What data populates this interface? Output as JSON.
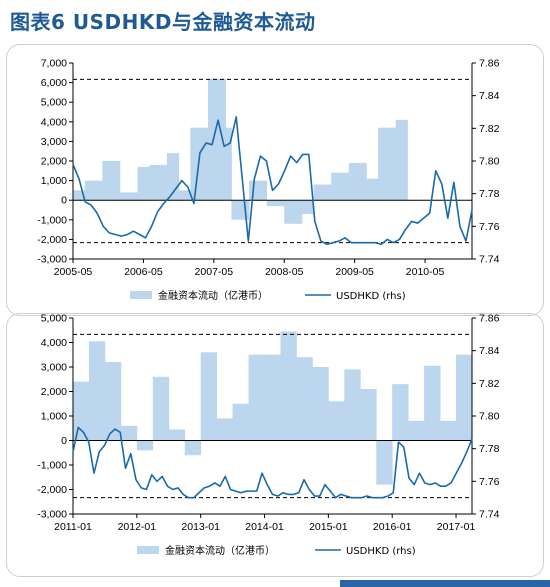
{
  "title": "图表6  USDHKD与金融资本流动",
  "chart_data": [
    {
      "type": "bar+line",
      "x_ticks": [
        "2005-05",
        "2006-05",
        "2007-05",
        "2008-05",
        "2009-05",
        "2010-05"
      ],
      "x_range": [
        "2005-05",
        "2011-01"
      ],
      "left_axis": {
        "ylim": [
          -3000,
          7000
        ],
        "ticks": [
          "-3,000",
          "-2,000",
          "-1,000",
          "0",
          "1,000",
          "2,000",
          "3,000",
          "4,000",
          "5,000",
          "6,000",
          "7,000"
        ]
      },
      "right_axis": {
        "ylim": [
          7.74,
          7.86
        ],
        "ticks": [
          "7.74",
          "7.76",
          "7.78",
          "7.80",
          "7.82",
          "7.84",
          "7.86"
        ]
      },
      "reference_lines_rhs": [
        7.85,
        7.75
      ],
      "legend": [
        "金融资本流动（亿港币）",
        "USDHKD (rhs)"
      ],
      "legend_placement": "bottom",
      "series": [
        {
          "name": "金融资本流动（亿港币）",
          "kind": "bar",
          "axis": "left",
          "values": [
            500,
            500,
            1000,
            1000,
            1000,
            2000,
            2000,
            2000,
            400,
            400,
            400,
            1700,
            1700,
            1800,
            1800,
            1800,
            2400,
            2400,
            500,
            500,
            3700,
            3700,
            3700,
            6200,
            6200,
            6200,
            3700,
            -1000,
            -1000,
            -1000,
            1000,
            1000,
            1000,
            -300,
            -300,
            -300,
            -1200,
            -1200,
            -1200,
            -700,
            -700,
            800,
            800,
            800,
            1400,
            1400,
            1400,
            1900,
            1900,
            1900,
            1100,
            1100,
            3700,
            3700,
            3700,
            4100,
            4100
          ]
        },
        {
          "name": "USDHKD (rhs)",
          "kind": "line",
          "axis": "right",
          "values": [
            7.798,
            7.789,
            7.775,
            7.773,
            7.768,
            7.76,
            7.756,
            7.755,
            7.754,
            7.755,
            7.757,
            7.755,
            7.753,
            7.76,
            7.769,
            7.774,
            7.778,
            7.783,
            7.788,
            7.784,
            7.774,
            7.805,
            7.811,
            7.81,
            7.825,
            7.809,
            7.811,
            7.827,
            7.789,
            7.751,
            7.789,
            7.803,
            7.8,
            7.782,
            7.786,
            7.794,
            7.803,
            7.799,
            7.804,
            7.804,
            7.763,
            7.751,
            7.749,
            7.75,
            7.751,
            7.753,
            7.75,
            7.75,
            7.75,
            7.75,
            7.75,
            7.749,
            7.752,
            7.75,
            7.752,
            7.758,
            7.763,
            7.762,
            7.765,
            7.768,
            7.794,
            7.786,
            7.765,
            7.787,
            7.76,
            7.751,
            7.77
          ]
        }
      ]
    },
    {
      "type": "bar+line",
      "x_ticks": [
        "2011-01",
        "2012-01",
        "2013-01",
        "2014-01",
        "2015-01",
        "2016-01",
        "2017-01"
      ],
      "x_range": [
        "2011-01",
        "2017-04"
      ],
      "left_axis": {
        "ylim": [
          -3000,
          5000
        ],
        "ticks": [
          "-3,000",
          "-2,000",
          "-1,000",
          "0",
          "1,000",
          "2,000",
          "3,000",
          "4,000",
          "5,000"
        ]
      },
      "right_axis": {
        "ylim": [
          7.74,
          7.86
        ],
        "ticks": [
          "7.74",
          "7.76",
          "7.78",
          "7.80",
          "7.82",
          "7.84",
          "7.86"
        ]
      },
      "reference_lines_rhs": [
        7.85,
        7.75
      ],
      "legend": [
        "金融资本流动（亿港币）",
        "USDHKD (rhs)"
      ],
      "legend_placement": "bottom",
      "series": [
        {
          "name": "金融资本流动（亿港币）",
          "kind": "bar",
          "axis": "left",
          "values": [
            2400,
            2400,
            2400,
            4050,
            4050,
            4050,
            3200,
            3200,
            3200,
            600,
            600,
            600,
            -400,
            -400,
            -400,
            2600,
            2600,
            2600,
            450,
            450,
            450,
            -600,
            -600,
            -600,
            3600,
            3600,
            3600,
            900,
            900,
            900,
            1500,
            1500,
            1500,
            3500,
            3500,
            3500,
            3500,
            3500,
            3500,
            4450,
            4450,
            4450,
            3400,
            3400,
            3400,
            3000,
            3000,
            3000,
            1600,
            1600,
            1600,
            2900,
            2900,
            2900,
            2100,
            2100,
            2100,
            -1800,
            -1800,
            -1800,
            2300,
            2300,
            2300,
            800,
            800,
            800,
            3050,
            3050,
            3050,
            800,
            800,
            800,
            3500,
            3500,
            3500,
            0
          ]
        },
        {
          "name": "USDHKD (rhs)",
          "kind": "line",
          "axis": "right",
          "values": [
            7.778,
            7.793,
            7.79,
            7.784,
            7.765,
            7.778,
            7.782,
            7.789,
            7.792,
            7.79,
            7.768,
            7.777,
            7.761,
            7.756,
            7.755,
            7.764,
            7.76,
            7.763,
            7.757,
            7.755,
            7.756,
            7.752,
            7.75,
            7.75,
            7.753,
            7.756,
            7.757,
            7.759,
            7.757,
            7.763,
            7.755,
            7.754,
            7.753,
            7.754,
            7.754,
            7.754,
            7.765,
            7.758,
            7.752,
            7.751,
            7.753,
            7.752,
            7.752,
            7.753,
            7.761,
            7.755,
            7.751,
            7.751,
            7.758,
            7.754,
            7.75,
            7.752,
            7.751,
            7.75,
            7.75,
            7.75,
            7.751,
            7.75,
            7.75,
            7.75,
            7.751,
            7.753,
            7.784,
            7.781,
            7.762,
            7.758,
            7.765,
            7.759,
            7.758,
            7.759,
            7.757,
            7.757,
            7.759,
            7.765,
            7.771,
            7.778,
            7.786
          ]
        }
      ]
    }
  ]
}
